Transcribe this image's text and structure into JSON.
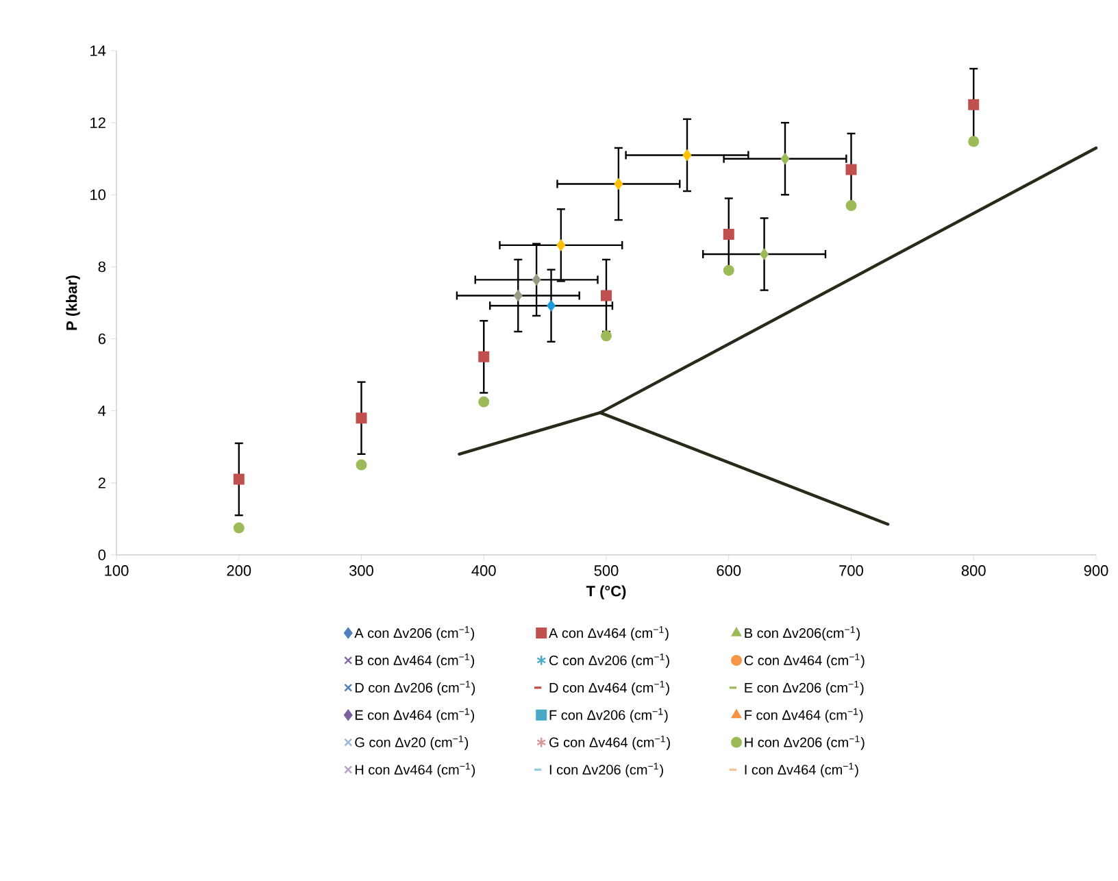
{
  "chart_data": {
    "type": "scatter",
    "xlabel": "T (°C)",
    "ylabel": "P (kbar)",
    "x": [
      200,
      300,
      400,
      500,
      600,
      700,
      800
    ],
    "xlim": [
      100,
      900
    ],
    "xticks": [
      100,
      200,
      300,
      400,
      500,
      600,
      700,
      800,
      900
    ],
    "ylim": [
      0,
      14
    ],
    "yticks": [
      0,
      2,
      4,
      6,
      8,
      10,
      12,
      14
    ],
    "grid": false,
    "legend": "bottom",
    "series": [
      {
        "name": "A con Δv206 (cm$^{−1}$)",
        "color": "#4f81bd",
        "marker": "diamond",
        "values": [
          null,
          null,
          null,
          null,
          null,
          null,
          null
        ]
      },
      {
        "name": "A con Δv464 (cm$^{−1}$)",
        "color": "#c0504d",
        "marker": "square",
        "values": [
          2.1,
          3.8,
          5.5,
          7.2,
          8.9,
          10.7,
          12.5
        ],
        "errors": [
          1,
          1,
          1,
          1,
          1,
          1,
          1
        ]
      },
      {
        "name": "B con Δv206(cm$^{−1}$)",
        "color": "#9bbb59",
        "marker": "triangle",
        "values": [
          null,
          null,
          null,
          null,
          null,
          null,
          null
        ]
      },
      {
        "name": "B con Δv464 (cm$^{−1}$)",
        "color": "#8064a2",
        "marker": "cross",
        "values": [
          null,
          null,
          null,
          null,
          null,
          null,
          null
        ]
      },
      {
        "name": "C con Δv206 (cm$^{−1}$)",
        "color": "#4bacc6",
        "marker": "star",
        "values": [
          null,
          null,
          null,
          null,
          null,
          null,
          null
        ]
      },
      {
        "name": "C con Δv464 (cm$^{−1}$)",
        "color": "#f79646",
        "marker": "circle",
        "values": [
          null,
          null,
          null,
          null,
          null,
          null,
          null
        ]
      },
      {
        "name": "D con Δv206 (cm$^{−1}$)",
        "color": "#4a7ebb",
        "marker": "cross",
        "values": [
          null,
          null,
          null,
          null,
          null,
          null,
          null
        ]
      },
      {
        "name": "D con Δv464 (cm$^{−1}$)",
        "color": "#be4b48",
        "values": [
          null,
          null,
          null,
          null,
          null,
          null,
          null
        ]
      },
      {
        "name": "E con Δv206 (cm$^{−1}$)",
        "color": "#98b954",
        "values": [
          null,
          null,
          null,
          null,
          null,
          null,
          null
        ]
      },
      {
        "name": "E con Δv464 (cm$^{−1}$)",
        "color": "#7d60a0",
        "marker": "diamond",
        "values": [
          null,
          null,
          null,
          null,
          null,
          null,
          null
        ]
      },
      {
        "name": "F con Δv206 (cm$^{−1}$)",
        "color": "#46aac5",
        "marker": "square",
        "values": [
          null,
          null,
          null,
          null,
          null,
          null,
          null
        ]
      },
      {
        "name": "F con Δv464 (cm$^{−1}$)",
        "color": "#f69240",
        "marker": "triangle",
        "values": [
          null,
          null,
          null,
          null,
          null,
          null,
          null
        ]
      },
      {
        "name": "G con Δv20 (cm$^{−1}$)",
        "color": "#95b3d7",
        "marker": "cross",
        "values": [
          null,
          null,
          null,
          null,
          null,
          null,
          null
        ]
      },
      {
        "name": "G con Δv464 (cm$^{−1}$)",
        "color": "#d99694",
        "marker": "star",
        "values": [
          null,
          null,
          null,
          null,
          null,
          null,
          null
        ]
      },
      {
        "name": "H con Δv206 (cm$^{−1}$)",
        "color": "#9bbb59",
        "marker": "circle",
        "values": [
          0.75,
          2.5,
          4.25,
          6.08,
          7.9,
          9.7,
          11.48
        ]
      },
      {
        "name": "H con Δv464 (cm$^{−1}$)",
        "color": "#b3a2c7",
        "marker": "cross",
        "values": [
          null,
          null,
          null,
          null,
          null,
          null,
          null
        ]
      },
      {
        "name": "I con Δv206 (cm$^{−1}$)",
        "color": "#93cddd",
        "values": [
          null,
          null,
          null,
          null,
          null,
          null,
          null
        ]
      },
      {
        "name": "I con Δv464 (cm$^{−1}$)",
        "color": "#fac090",
        "values": [
          null,
          null,
          null,
          null,
          null,
          null,
          null
        ]
      },
      {
        "color": "#ffc000",
        "marker": "diamond",
        "x": [
          463,
          510,
          566
        ],
        "values": [
          8.6,
          10.3,
          11.1
        ],
        "xerrors": [
          50,
          50,
          50
        ],
        "errors": [
          1,
          1,
          1
        ]
      },
      {
        "color": "#9bbb59",
        "marker": "diamond",
        "x": [
          629,
          646
        ],
        "values": [
          8.35,
          11.0
        ],
        "xerrors": [
          50,
          50
        ],
        "errors": [
          1,
          1
        ]
      },
      {
        "color": "#9a9b84",
        "marker": "diamond",
        "x": [
          428,
          443
        ],
        "values": [
          7.2,
          7.64
        ],
        "xerrors": [
          50,
          50
        ],
        "errors": [
          1,
          1
        ]
      },
      {
        "color": "#1f9bd7",
        "marker": "diamond",
        "x": [
          455
        ],
        "values": [
          6.92
        ],
        "xerrors": [
          50
        ],
        "errors": [
          1
        ]
      },
      {
        "type": "line",
        "color": "#2b2a1a",
        "marker": "none",
        "line_style": "solid",
        "x": [
          380,
          495,
          900
        ],
        "values": [
          2.8,
          3.95,
          11.3
        ]
      },
      {
        "type": "line",
        "color": "#2b2a1a",
        "marker": "none",
        "line_style": "solid",
        "x": [
          495,
          730
        ],
        "values": [
          3.95,
          0.85
        ]
      }
    ]
  }
}
